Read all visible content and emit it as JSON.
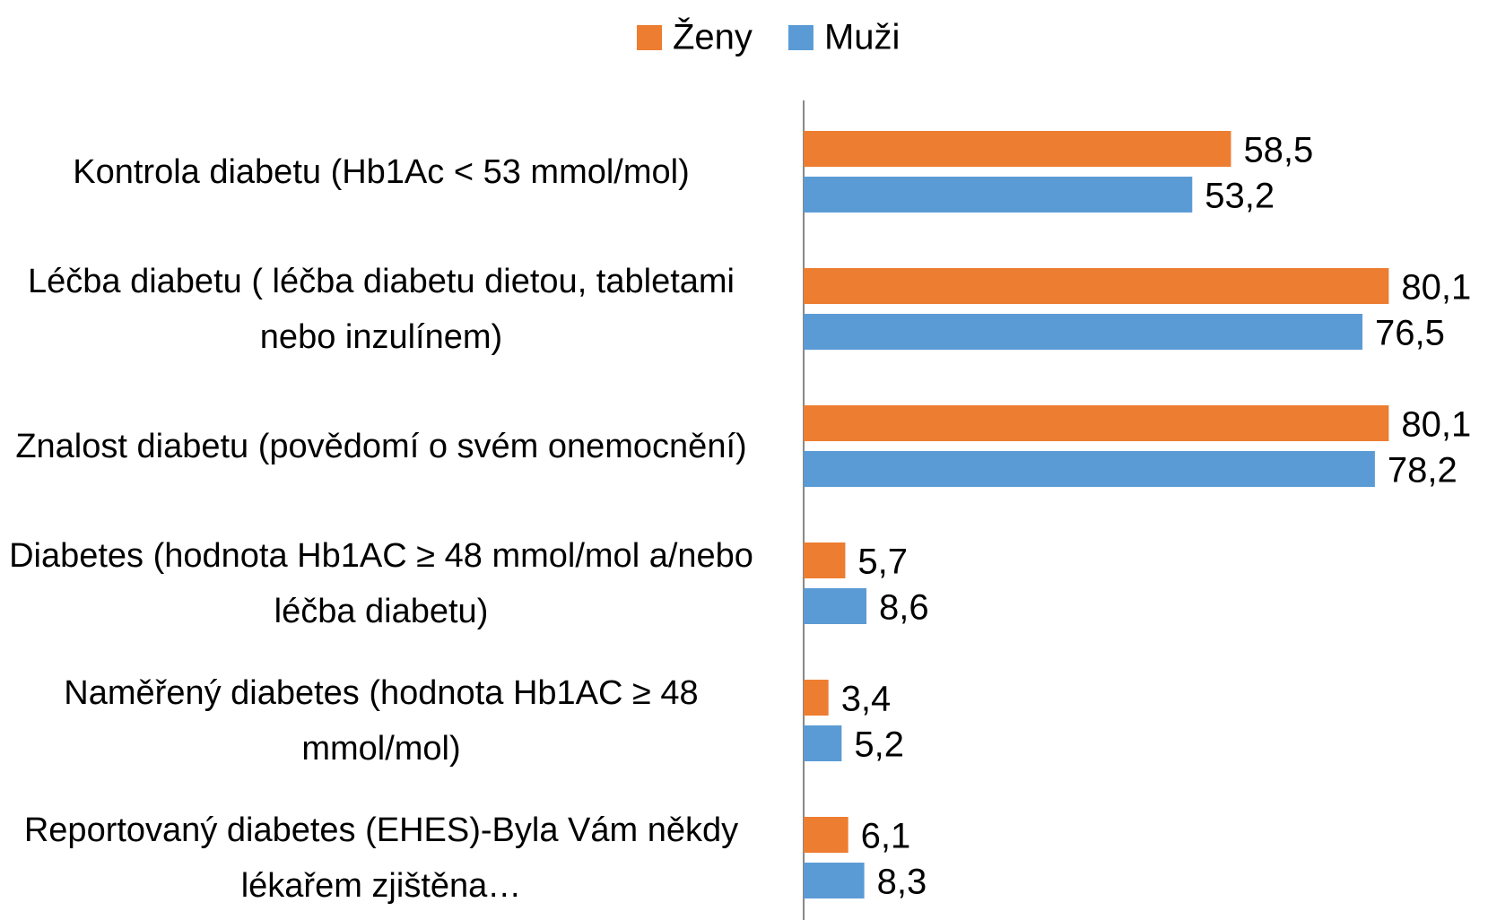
{
  "chart_data": {
    "type": "hbar",
    "categories": [
      "Kontrola diabetu (Hb1Ac < 53 mmol/mol)",
      "Léčba diabetu ( léčba diabetu dietou, tabletami nebo inzulínem)",
      "Znalost diabetu (povědomí o svém onemocnění)",
      "Diabetes (hodnota Hb1AC ≥ 48 mmol/mol a/nebo léčba diabetu)",
      "Naměřený diabetes (hodnota Hb1AC ≥ 48 mmol/mol)",
      "Reportovaný diabetes (EHES)-Byla Vám někdy  lékařem  zjištěna…"
    ],
    "series": [
      {
        "name": "Ženy",
        "color": "#ed7d31",
        "values": [
          58.5,
          80.1,
          80.1,
          5.7,
          3.4,
          6.1
        ],
        "value_labels": [
          "58,5",
          "80,1",
          "80,1",
          "5,7",
          "3,4",
          "6,1"
        ]
      },
      {
        "name": "Muži",
        "color": "#5b9bd5",
        "values": [
          53.2,
          76.5,
          78.2,
          8.6,
          5.2,
          8.3
        ],
        "value_labels": [
          "53,2",
          "76,5",
          "78,2",
          "8,6",
          "5,2",
          "8,3"
        ]
      }
    ],
    "xlim": [
      0,
      90
    ],
    "legend": "top"
  }
}
